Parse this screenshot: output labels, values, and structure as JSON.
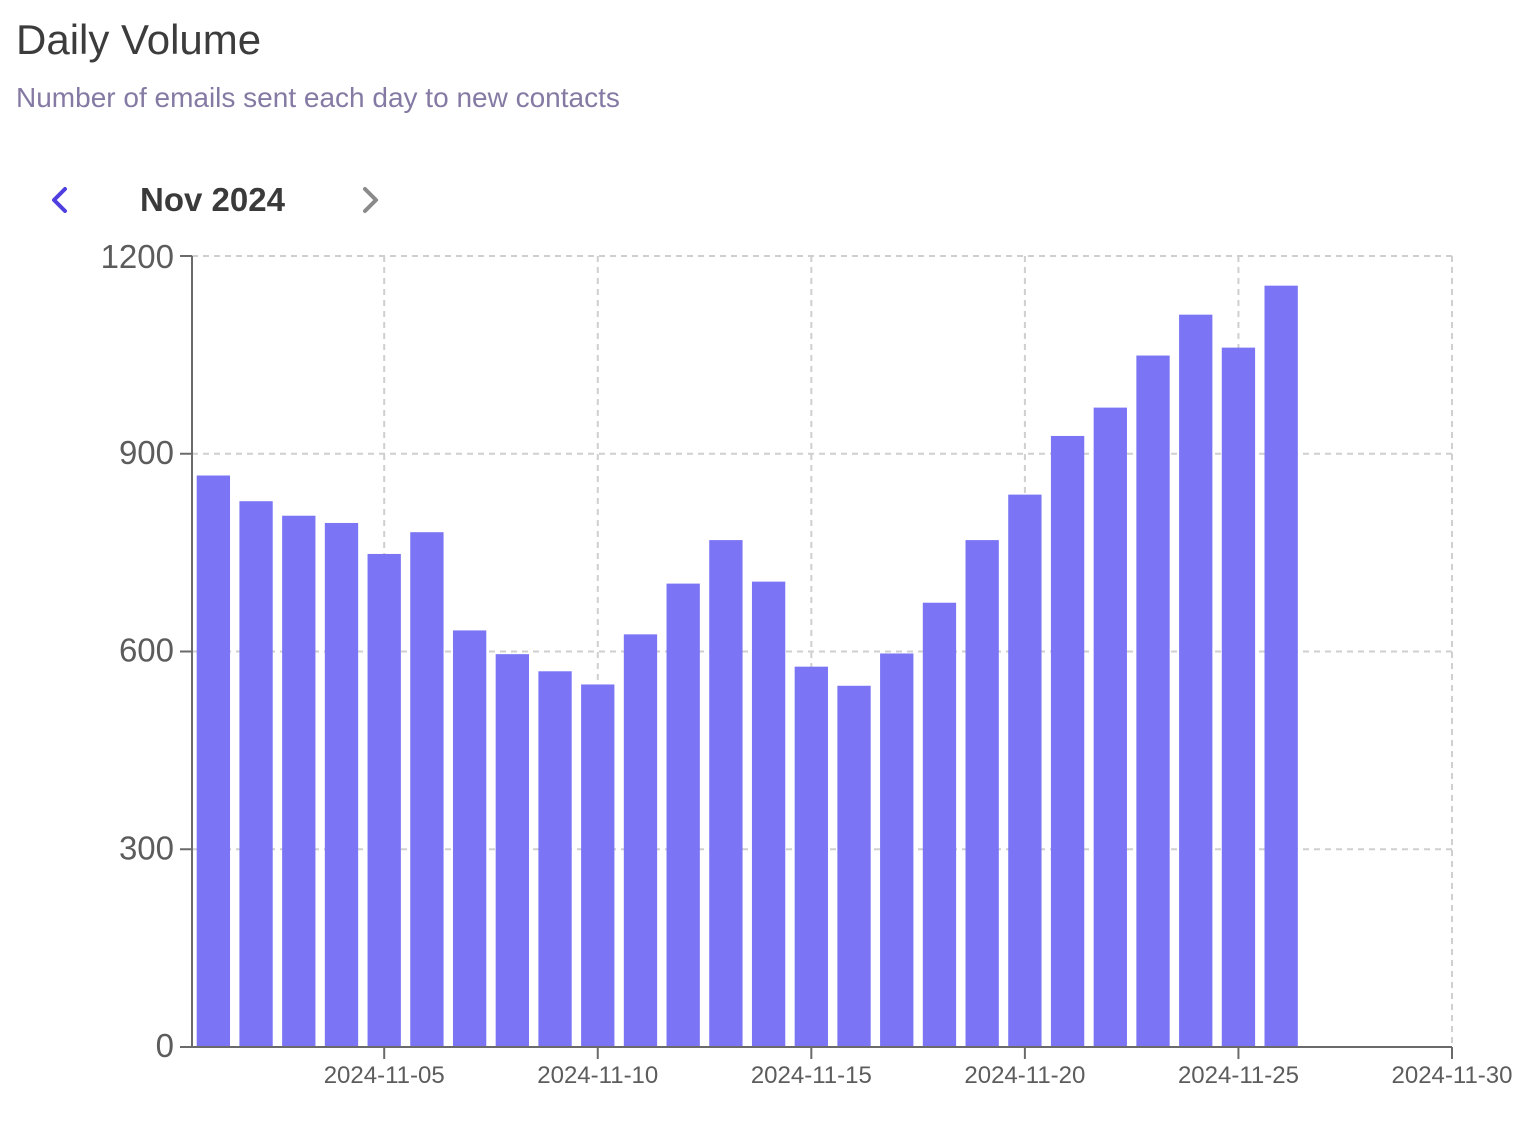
{
  "header": {
    "title": "Daily Volume",
    "subtitle": "Number of emails sent each day to new contacts"
  },
  "nav": {
    "month_label": "Nov 2024",
    "prev_icon": "chevron-left-icon",
    "next_icon": "chevron-right-icon"
  },
  "colors": {
    "bar": "#7b75f5",
    "prev_active": "#4f3fe0",
    "next_inactive": "#8a8a8a",
    "grid": "#cfcfcf",
    "axis": "#6a6a6a"
  },
  "chart_data": {
    "type": "bar",
    "x": [
      "2024-11-01",
      "2024-11-02",
      "2024-11-03",
      "2024-11-04",
      "2024-11-05",
      "2024-11-06",
      "2024-11-07",
      "2024-11-08",
      "2024-11-09",
      "2024-11-10",
      "2024-11-11",
      "2024-11-12",
      "2024-11-13",
      "2024-11-14",
      "2024-11-15",
      "2024-11-16",
      "2024-11-17",
      "2024-11-18",
      "2024-11-19",
      "2024-11-20",
      "2024-11-21",
      "2024-11-22",
      "2024-11-23",
      "2024-11-24",
      "2024-11-25",
      "2024-11-26"
    ],
    "values": [
      867,
      828,
      806,
      795,
      748,
      781,
      632,
      596,
      570,
      550,
      626,
      703,
      769,
      706,
      577,
      548,
      597,
      674,
      769,
      838,
      927,
      970,
      1049,
      1111,
      1061,
      1155
    ],
    "ylim": [
      0,
      1200
    ],
    "y_ticks": [
      "0",
      "300",
      "600",
      "900",
      "1200"
    ],
    "x_tick_labels": [
      "2024-11-05",
      "2024-11-10",
      "2024-11-15",
      "2024-11-20",
      "2024-11-25",
      "2024-11-30"
    ],
    "x_range": [
      "2024-11-01",
      "2024-11-30"
    ],
    "grid": true,
    "xlabel": "",
    "ylabel": ""
  }
}
